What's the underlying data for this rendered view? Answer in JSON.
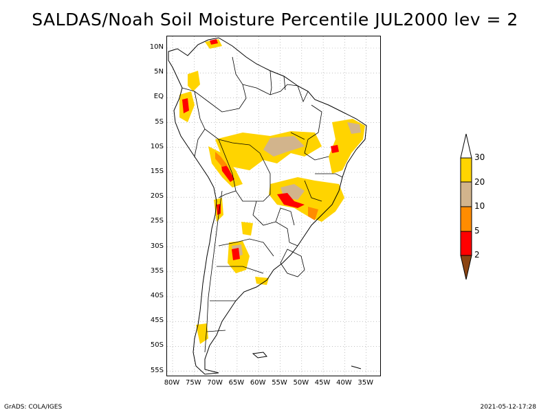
{
  "title": "SALDAS/Noah Soil Moisture Percentile JUL2000 lev = 2",
  "map": {
    "lat_ticks": [
      "10N",
      "5N",
      "EQ",
      "5S",
      "10S",
      "15S",
      "20S",
      "25S",
      "30S",
      "35S",
      "40S",
      "45S",
      "50S",
      "55S"
    ],
    "lon_ticks": [
      "80W",
      "75W",
      "70W",
      "65W",
      "60W",
      "55W",
      "50W",
      "45W",
      "40W",
      "35W"
    ],
    "extent": {
      "lon": [
        -81,
        -33
      ],
      "lat": [
        -56,
        12
      ]
    },
    "grid": true
  },
  "legend": {
    "values": [
      "30",
      "20",
      "10",
      "5",
      "2"
    ],
    "colors": {
      "above_30": "#ffffff",
      "20_30": "#ffd400",
      "10_20": "#d2b48c",
      "5_10": "#ff8c00",
      "2_5": "#ff0000",
      "below_2": "#8b4513"
    }
  },
  "footer": {
    "left": "GrADS: COLA/IGES",
    "right": "2021-05-12-17:28"
  }
}
